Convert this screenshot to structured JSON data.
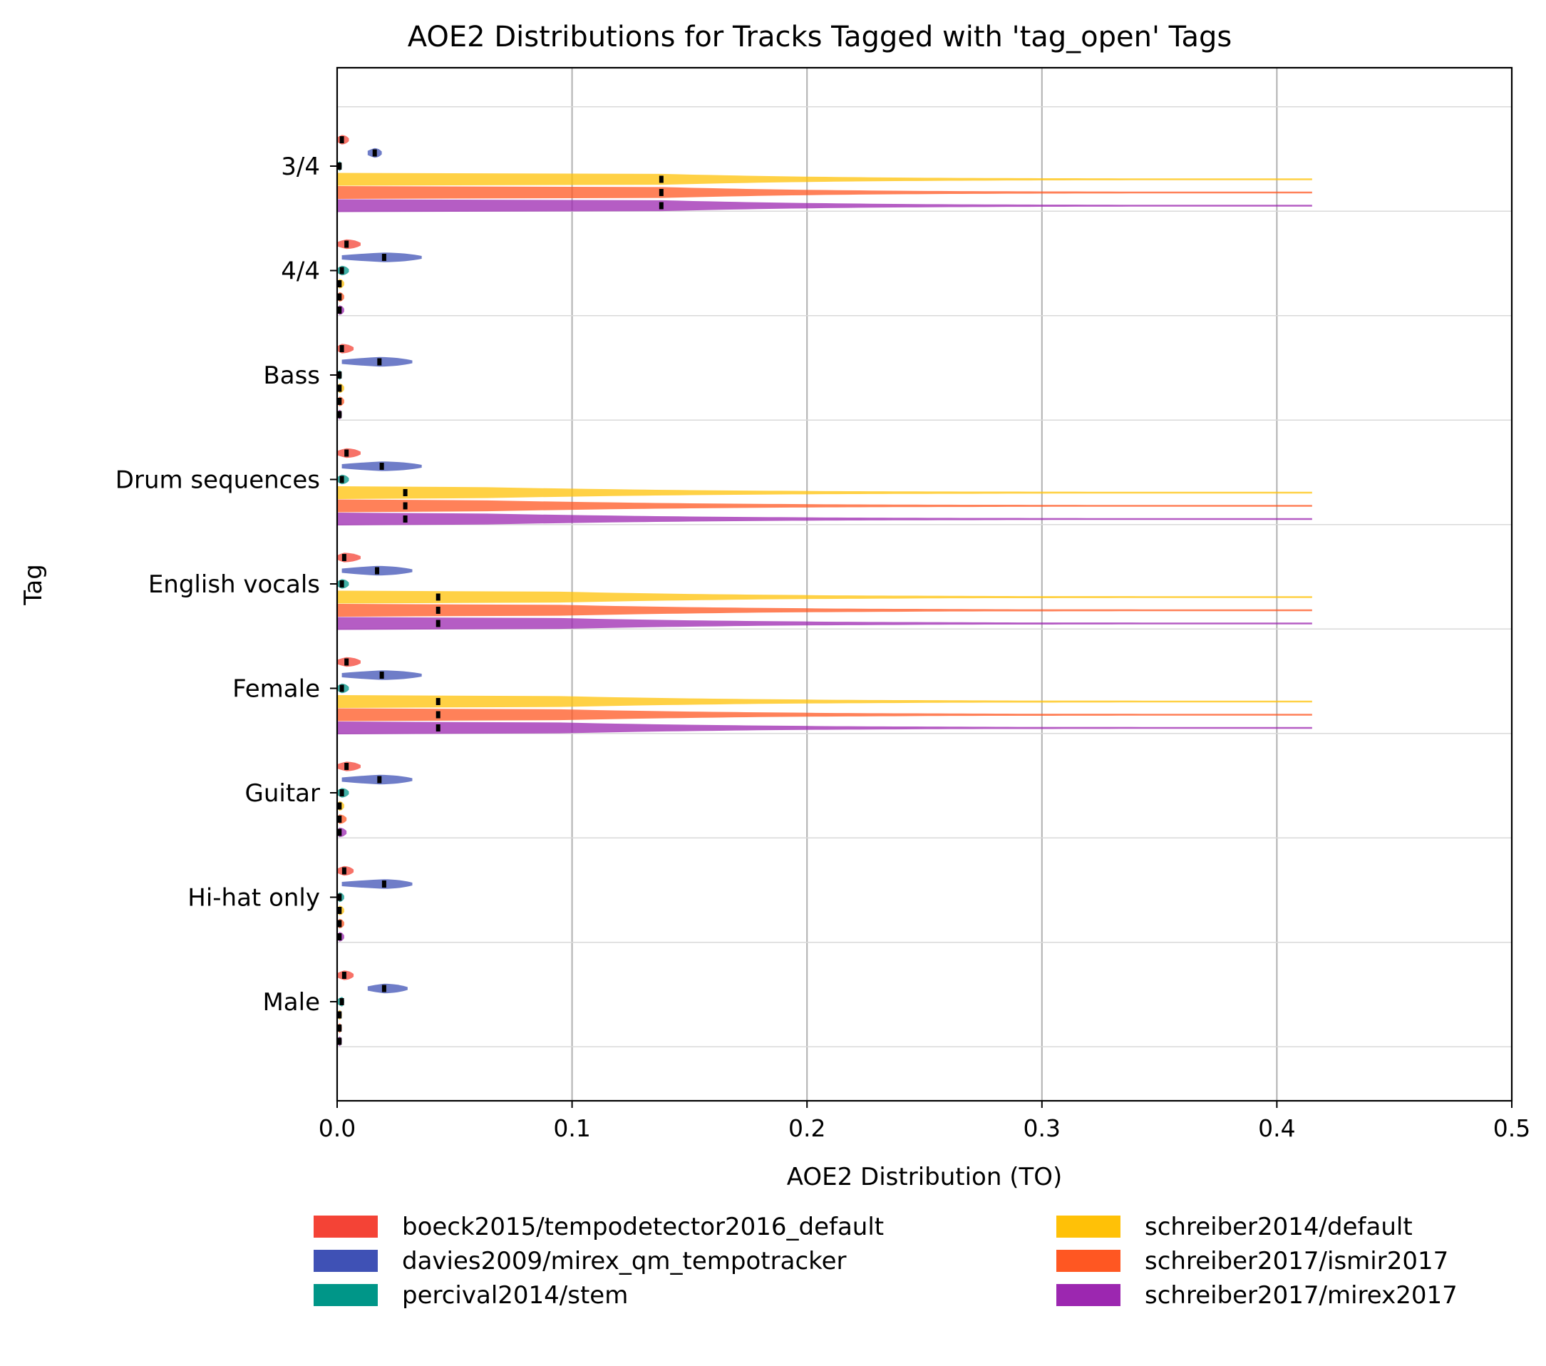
{
  "chart_data": {
    "type": "violin",
    "title": "AOE2 Distributions for Tracks Tagged with 'tag_open' Tags",
    "xlabel": "AOE2 Distribution (TO)",
    "ylabel": "Tag",
    "xlim": [
      0.0,
      0.5
    ],
    "x_ticks": [
      "0.0",
      "0.1",
      "0.2",
      "0.3",
      "0.4",
      "0.5"
    ],
    "x_tick_values": [
      0.0,
      0.1,
      0.2,
      0.3,
      0.4,
      0.5
    ],
    "grid": "vertical major + horizontal separators",
    "categories": [
      "3/4",
      "4/4",
      "Bass",
      "Drum sequences",
      "English vocals",
      "Female",
      "Guitar",
      "Hi-hat only",
      "Male"
    ],
    "legend_position": "bottom",
    "series": [
      {
        "name": "boeck2015/tempodetector2016_default",
        "color": "#f44336",
        "median": [
          0.002,
          0.004,
          0.002,
          0.004,
          0.003,
          0.004,
          0.004,
          0.003,
          0.003
        ],
        "extent": [
          [
            0,
            0.005
          ],
          [
            0,
            0.01
          ],
          [
            0,
            0.007
          ],
          [
            0,
            0.01
          ],
          [
            0,
            0.01
          ],
          [
            0,
            0.01
          ],
          [
            0,
            0.01
          ],
          [
            0,
            0.007
          ],
          [
            0,
            0.007
          ]
        ]
      },
      {
        "name": "davies2009/mirex_qm_tempotracker",
        "color": "#3f51b5",
        "median": [
          0.016,
          0.02,
          0.018,
          0.019,
          0.017,
          0.019,
          0.018,
          0.02,
          0.02
        ],
        "extent": [
          [
            0.013,
            0.019
          ],
          [
            0.002,
            0.036
          ],
          [
            0.002,
            0.032
          ],
          [
            0.002,
            0.036
          ],
          [
            0.002,
            0.032
          ],
          [
            0.002,
            0.036
          ],
          [
            0.002,
            0.032
          ],
          [
            0.002,
            0.032
          ],
          [
            0.013,
            0.03
          ]
        ]
      },
      {
        "name": "percival2014/stem",
        "color": "#009688",
        "median": [
          0.001,
          0.002,
          0.001,
          0.002,
          0.002,
          0.002,
          0.002,
          0.001,
          0.002
        ],
        "extent": [
          [
            0,
            0.002
          ],
          [
            0,
            0.005
          ],
          [
            0,
            0.002
          ],
          [
            0,
            0.005
          ],
          [
            0,
            0.005
          ],
          [
            0,
            0.005
          ],
          [
            0,
            0.005
          ],
          [
            0,
            0.003
          ],
          [
            0,
            0.003
          ]
        ]
      },
      {
        "name": "schreiber2014/default",
        "color": "#ffc107",
        "median": [
          0.138,
          0.001,
          0.001,
          0.029,
          0.043,
          0.043,
          0.001,
          0.001,
          0.001
        ],
        "extent": [
          [
            0,
            0.415
          ],
          [
            0,
            0.003
          ],
          [
            0,
            0.003
          ],
          [
            0,
            0.415
          ],
          [
            0,
            0.415
          ],
          [
            0,
            0.415
          ],
          [
            0,
            0.003
          ],
          [
            0,
            0.003
          ],
          [
            0,
            0.002
          ]
        ]
      },
      {
        "name": "schreiber2017/ismir2017",
        "color": "#ff5722",
        "median": [
          0.138,
          0.001,
          0.001,
          0.029,
          0.043,
          0.043,
          0.001,
          0.001,
          0.001
        ],
        "extent": [
          [
            0,
            0.415
          ],
          [
            0,
            0.003
          ],
          [
            0,
            0.003
          ],
          [
            0,
            0.415
          ],
          [
            0,
            0.415
          ],
          [
            0,
            0.415
          ],
          [
            0,
            0.004
          ],
          [
            0,
            0.003
          ],
          [
            0,
            0.002
          ]
        ]
      },
      {
        "name": "schreiber2017/mirex2017",
        "color": "#9c27b0",
        "median": [
          0.138,
          0.001,
          0.001,
          0.029,
          0.043,
          0.043,
          0.001,
          0.001,
          0.001
        ],
        "extent": [
          [
            0,
            0.415
          ],
          [
            0,
            0.003
          ],
          [
            0,
            0.002
          ],
          [
            0,
            0.415
          ],
          [
            0,
            0.415
          ],
          [
            0,
            0.415
          ],
          [
            0,
            0.004
          ],
          [
            0,
            0.003
          ],
          [
            0,
            0.002
          ]
        ]
      }
    ]
  }
}
